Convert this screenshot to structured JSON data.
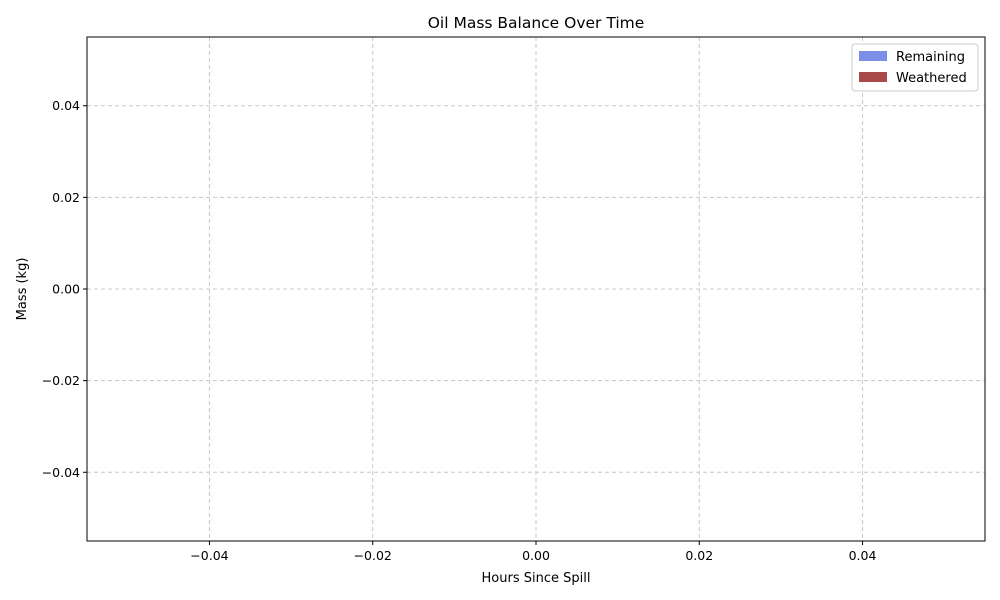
{
  "chart_data": {
    "type": "area",
    "title": "Oil Mass Balance Over Time",
    "xlabel": "Hours Since Spill",
    "ylabel": "Mass (kg)",
    "xlim": [
      -0.055,
      0.055
    ],
    "ylim": [
      -0.055,
      0.055
    ],
    "xticks": [
      -0.04,
      -0.02,
      0.0,
      0.02,
      0.04
    ],
    "yticks": [
      -0.04,
      -0.02,
      0.0,
      0.02,
      0.04
    ],
    "xtick_labels": [
      "−0.04",
      "−0.02",
      "0.00",
      "0.02",
      "0.04"
    ],
    "ytick_labels": [
      "−0.04",
      "−0.02",
      "0.00",
      "0.02",
      "0.04"
    ],
    "grid": true,
    "legend_position": "top-right",
    "x": [],
    "series": [
      {
        "name": "Remaining",
        "color": "#7b8fe8",
        "values": []
      },
      {
        "name": "Weathered",
        "color": "#a84a4a",
        "values": []
      }
    ]
  }
}
